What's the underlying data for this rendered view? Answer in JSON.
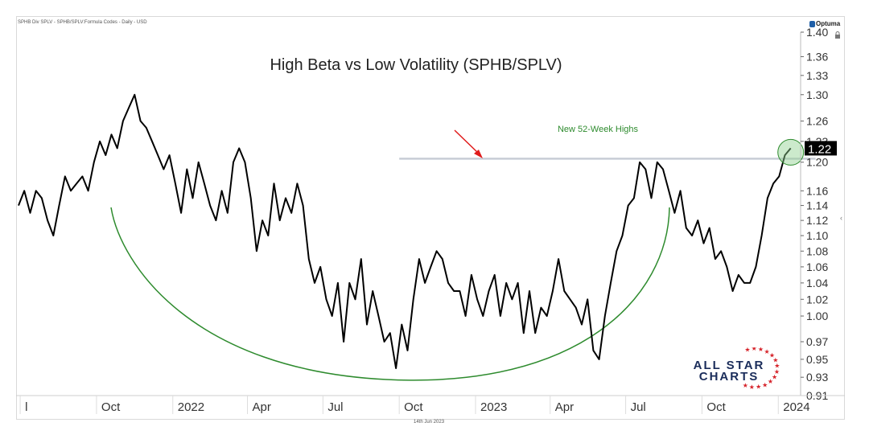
{
  "header": {
    "source_label": "SPHB Div SPLV - SPHB/SPLV:Formula Codes - Daily - USD",
    "brand": "Optuma",
    "date_footer": "14th Jun 2023"
  },
  "chart_data": {
    "type": "line",
    "title": "High Beta vs Low Volatility (SPHB/SPLV)",
    "xlabel": "",
    "ylabel": "",
    "x_tick_labels": [
      "l",
      "Oct",
      "2022",
      "Apr",
      "Jul",
      "Oct",
      "2023",
      "Apr",
      "Jul",
      "Oct",
      "2024"
    ],
    "x_tick_dates": [
      "2021-07-01",
      "2021-10-01",
      "2022-01-01",
      "2022-04-01",
      "2022-07-01",
      "2022-10-01",
      "2023-01-01",
      "2023-04-01",
      "2023-07-01",
      "2023-10-01",
      "2024-01-01"
    ],
    "y_tick_labels": [
      "1.40",
      "1.36",
      "1.33",
      "1.30",
      "1.26",
      "1.23",
      "1.20",
      "1.16",
      "1.14",
      "1.12",
      "1.10",
      "1.08",
      "1.06",
      "1.04",
      "1.02",
      "1.00",
      "0.97",
      "0.95",
      "0.93",
      "0.91"
    ],
    "y_ticks": [
      1.4,
      1.36,
      1.33,
      1.3,
      1.26,
      1.23,
      1.2,
      1.16,
      1.14,
      1.12,
      1.1,
      1.08,
      1.06,
      1.04,
      1.02,
      1.0,
      0.97,
      0.95,
      0.93,
      0.91
    ],
    "y_scale": "log",
    "ylim": [
      0.91,
      1.4
    ],
    "xlim": [
      "2021-06-28",
      "2024-01-25"
    ],
    "grid": false,
    "series": [
      {
        "color": "#000000",
        "points": [
          [
            "2021-06-29",
            1.14
          ],
          [
            "2021-07-06",
            1.16
          ],
          [
            "2021-07-13",
            1.13
          ],
          [
            "2021-07-20",
            1.16
          ],
          [
            "2021-07-27",
            1.15
          ],
          [
            "2021-08-03",
            1.12
          ],
          [
            "2021-08-10",
            1.1
          ],
          [
            "2021-08-17",
            1.14
          ],
          [
            "2021-08-24",
            1.18
          ],
          [
            "2021-08-31",
            1.16
          ],
          [
            "2021-09-07",
            1.17
          ],
          [
            "2021-09-14",
            1.18
          ],
          [
            "2021-09-21",
            1.16
          ],
          [
            "2021-09-28",
            1.2
          ],
          [
            "2021-10-05",
            1.23
          ],
          [
            "2021-10-12",
            1.21
          ],
          [
            "2021-10-19",
            1.24
          ],
          [
            "2021-10-26",
            1.22
          ],
          [
            "2021-11-02",
            1.26
          ],
          [
            "2021-11-09",
            1.28
          ],
          [
            "2021-11-16",
            1.3
          ],
          [
            "2021-11-23",
            1.26
          ],
          [
            "2021-11-30",
            1.25
          ],
          [
            "2021-12-07",
            1.23
          ],
          [
            "2021-12-14",
            1.21
          ],
          [
            "2021-12-21",
            1.19
          ],
          [
            "2021-12-28",
            1.21
          ],
          [
            "2022-01-04",
            1.17
          ],
          [
            "2022-01-11",
            1.13
          ],
          [
            "2022-01-18",
            1.19
          ],
          [
            "2022-01-25",
            1.15
          ],
          [
            "2022-02-01",
            1.2
          ],
          [
            "2022-02-08",
            1.17
          ],
          [
            "2022-02-15",
            1.14
          ],
          [
            "2022-02-22",
            1.12
          ],
          [
            "2022-03-01",
            1.16
          ],
          [
            "2022-03-08",
            1.13
          ],
          [
            "2022-03-15",
            1.2
          ],
          [
            "2022-03-22",
            1.22
          ],
          [
            "2022-03-29",
            1.2
          ],
          [
            "2022-04-05",
            1.15
          ],
          [
            "2022-04-12",
            1.08
          ],
          [
            "2022-04-19",
            1.12
          ],
          [
            "2022-04-26",
            1.1
          ],
          [
            "2022-05-03",
            1.17
          ],
          [
            "2022-05-10",
            1.12
          ],
          [
            "2022-05-17",
            1.15
          ],
          [
            "2022-05-24",
            1.13
          ],
          [
            "2022-05-31",
            1.17
          ],
          [
            "2022-06-07",
            1.14
          ],
          [
            "2022-06-14",
            1.07
          ],
          [
            "2022-06-21",
            1.04
          ],
          [
            "2022-06-28",
            1.06
          ],
          [
            "2022-07-05",
            1.02
          ],
          [
            "2022-07-12",
            1.0
          ],
          [
            "2022-07-19",
            1.04
          ],
          [
            "2022-07-26",
            0.97
          ],
          [
            "2022-08-02",
            1.04
          ],
          [
            "2022-08-09",
            1.02
          ],
          [
            "2022-08-16",
            1.07
          ],
          [
            "2022-08-23",
            0.99
          ],
          [
            "2022-08-30",
            1.03
          ],
          [
            "2022-09-06",
            1.0
          ],
          [
            "2022-09-13",
            0.97
          ],
          [
            "2022-09-20",
            0.98
          ],
          [
            "2022-09-27",
            0.94
          ],
          [
            "2022-10-04",
            0.99
          ],
          [
            "2022-10-11",
            0.96
          ],
          [
            "2022-10-18",
            1.02
          ],
          [
            "2022-10-25",
            1.07
          ],
          [
            "2022-11-01",
            1.04
          ],
          [
            "2022-11-08",
            1.06
          ],
          [
            "2022-11-15",
            1.08
          ],
          [
            "2022-11-22",
            1.07
          ],
          [
            "2022-11-29",
            1.04
          ],
          [
            "2022-12-06",
            1.03
          ],
          [
            "2022-12-13",
            1.03
          ],
          [
            "2022-12-20",
            1.0
          ],
          [
            "2022-12-27",
            1.05
          ],
          [
            "2023-01-03",
            1.02
          ],
          [
            "2023-01-10",
            1.0
          ],
          [
            "2023-01-17",
            1.03
          ],
          [
            "2023-01-24",
            1.05
          ],
          [
            "2023-01-31",
            1.0
          ],
          [
            "2023-02-07",
            1.04
          ],
          [
            "2023-02-14",
            1.02
          ],
          [
            "2023-02-21",
            1.04
          ],
          [
            "2023-02-28",
            0.98
          ],
          [
            "2023-03-07",
            1.03
          ],
          [
            "2023-03-14",
            0.98
          ],
          [
            "2023-03-21",
            1.01
          ],
          [
            "2023-03-28",
            1.0
          ],
          [
            "2023-04-04",
            1.03
          ],
          [
            "2023-04-11",
            1.07
          ],
          [
            "2023-04-18",
            1.03
          ],
          [
            "2023-04-25",
            1.02
          ],
          [
            "2023-05-02",
            1.01
          ],
          [
            "2023-05-09",
            0.99
          ],
          [
            "2023-05-16",
            1.02
          ],
          [
            "2023-05-23",
            0.96
          ],
          [
            "2023-05-30",
            0.95
          ],
          [
            "2023-06-06",
            1.0
          ],
          [
            "2023-06-13",
            1.04
          ],
          [
            "2023-06-20",
            1.08
          ],
          [
            "2023-06-27",
            1.1
          ],
          [
            "2023-07-04",
            1.14
          ],
          [
            "2023-07-11",
            1.15
          ],
          [
            "2023-07-18",
            1.2
          ],
          [
            "2023-07-25",
            1.19
          ],
          [
            "2023-08-01",
            1.15
          ],
          [
            "2023-08-08",
            1.2
          ],
          [
            "2023-08-15",
            1.19
          ],
          [
            "2023-08-22",
            1.16
          ],
          [
            "2023-08-29",
            1.13
          ],
          [
            "2023-09-05",
            1.16
          ],
          [
            "2023-09-12",
            1.11
          ],
          [
            "2023-09-19",
            1.1
          ],
          [
            "2023-09-26",
            1.12
          ],
          [
            "2023-10-03",
            1.09
          ],
          [
            "2023-10-10",
            1.11
          ],
          [
            "2023-10-17",
            1.07
          ],
          [
            "2023-10-24",
            1.08
          ],
          [
            "2023-10-31",
            1.06
          ],
          [
            "2023-11-07",
            1.03
          ],
          [
            "2023-11-14",
            1.05
          ],
          [
            "2023-11-21",
            1.04
          ],
          [
            "2023-11-28",
            1.04
          ],
          [
            "2023-12-05",
            1.06
          ],
          [
            "2023-12-12",
            1.1
          ],
          [
            "2023-12-19",
            1.15
          ],
          [
            "2023-12-26",
            1.17
          ],
          [
            "2024-01-02",
            1.18
          ],
          [
            "2024-01-09",
            1.21
          ],
          [
            "2024-01-16",
            1.22
          ]
        ]
      }
    ],
    "current_value_label": "1.22",
    "current_value": 1.22,
    "resistance_level": 1.205,
    "resistance_range": [
      "2022-10-01",
      "2024-02-15"
    ],
    "annotation_text": "New 52-Week Highs",
    "annotation_color": "#2e8b2e",
    "arrow_color": "#e01b1b",
    "line_color": "#000000",
    "arc_color": "#2e8b2e",
    "level_color": "#c8cdd6"
  },
  "logo": {
    "line1": "ALL STAR",
    "line2": "CHARTS",
    "text_color": "#1a2c5a",
    "star_color": "#d6232a"
  }
}
